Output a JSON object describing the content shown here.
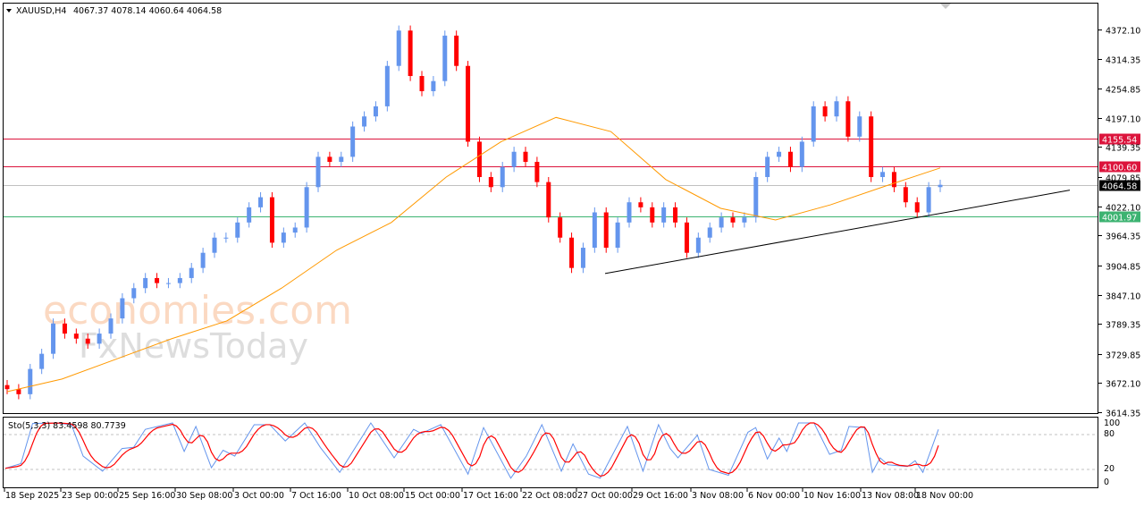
{
  "header": {
    "symbol": "XAUUSD,H4",
    "ohlc": "4067.37 4078.14 4060.64 4064.58"
  },
  "watermark": {
    "logo1": "economies.com",
    "logo2": "FxNewsToday"
  },
  "colors": {
    "bull": "#6495ED",
    "bear": "#FF0000",
    "ma": "#FF9900",
    "resistance": "#DC143C",
    "support": "#3CB371",
    "bid": "#C0C0C0",
    "stoch_main": "#6495ED",
    "stoch_signal": "#FF0000"
  },
  "chart_data": [
    {
      "type": "candlestick",
      "title": "XAUUSD,H4",
      "ylim": [
        3614.35,
        4372.1
      ],
      "closes": [
        3660,
        3650,
        3700,
        3730,
        3790,
        3770,
        3760,
        3750,
        3770,
        3800,
        3840,
        3860,
        3880,
        3870,
        3870,
        3880,
        3900,
        3930,
        3960,
        3960,
        3990,
        4020,
        4040,
        3950,
        3970,
        3980,
        4060,
        4120,
        4110,
        4120,
        4180,
        4200,
        4220,
        4300,
        4370,
        4280,
        4250,
        4270,
        4360,
        4300,
        4150,
        4080,
        4060,
        4100,
        4130,
        4110,
        4070,
        4000,
        3960,
        3900,
        3940,
        4010,
        3940,
        3990,
        4030,
        4020,
        3990,
        4020,
        3990,
        3930,
        3960,
        3980,
        4000,
        3990,
        4000,
        4080,
        4120,
        4130,
        4100,
        4150,
        4220,
        4200,
        4230,
        4160,
        4200,
        4080,
        4090,
        4060,
        4030,
        4010,
        4060,
        4064.58
      ],
      "moving_average": [
        3655,
        3680,
        3720,
        3760,
        3795,
        3860,
        3935,
        3990,
        4080,
        4150,
        4198,
        4170,
        4075,
        4018,
        3995,
        4025,
        4062,
        4098
      ],
      "price_labels": [
        "4372.10",
        "4314.35",
        "4254.85",
        "4197.10",
        "4139.35",
        "4079.85",
        "4022.10",
        "3964.35",
        "3904.85",
        "3847.10",
        "3789.35",
        "3729.85",
        "3672.10",
        "3614.35"
      ],
      "x_labels": [
        "18 Sep 2025",
        "23 Sep 00:00",
        "25 Sep 16:00",
        "30 Sep 08:00",
        "3 Oct 00:00",
        "7 Oct 16:00",
        "10 Oct 08:00",
        "15 Oct 00:00",
        "17 Oct 16:00",
        "22 Oct 08:00",
        "27 Oct 00:00",
        "29 Oct 16:00",
        "3 Nov 08:00",
        "6 Nov 00:00",
        "10 Nov 16:00",
        "13 Nov 08:00",
        "18 Nov 00:00"
      ],
      "levels": [
        {
          "label": "4155.54",
          "value": 4155.54,
          "kind": "resistance"
        },
        {
          "label": "4100.60",
          "value": 4100.6,
          "kind": "resistance"
        },
        {
          "label": "4064.58",
          "value": 4064.58,
          "kind": "bid"
        },
        {
          "label": "4001.97",
          "value": 4001.97,
          "kind": "support"
        }
      ],
      "trendline": {
        "from": 3889,
        "to": 4054
      }
    },
    {
      "type": "line",
      "title": "Sto(5,3,3) 83.4598 80.7739",
      "ylim": [
        0,
        100
      ],
      "levels": [
        "100",
        "80",
        "20",
        "0"
      ],
      "k": [
        [
          0,
          22
        ],
        [
          4,
          30
        ],
        [
          7,
          99
        ],
        [
          13,
          100
        ],
        [
          17,
          97
        ],
        [
          20,
          43
        ],
        [
          25,
          17
        ],
        [
          30,
          56
        ],
        [
          33,
          58
        ],
        [
          36,
          89
        ],
        [
          43,
          100
        ],
        [
          46,
          51
        ],
        [
          49,
          94
        ],
        [
          53,
          23
        ],
        [
          56,
          53
        ],
        [
          59,
          43
        ],
        [
          64,
          97
        ],
        [
          68,
          97
        ],
        [
          72,
          69
        ],
        [
          77,
          100
        ],
        [
          81,
          58
        ],
        [
          86,
          15
        ],
        [
          94,
          100
        ],
        [
          100,
          40
        ],
        [
          105,
          89
        ],
        [
          107,
          82
        ],
        [
          112,
          97
        ],
        [
          119,
          12
        ],
        [
          123,
          92
        ],
        [
          130,
          5
        ],
        [
          134,
          43
        ],
        [
          138,
          97
        ],
        [
          143,
          17
        ],
        [
          146,
          64
        ],
        [
          150,
          12
        ],
        [
          153,
          5
        ],
        [
          160,
          94
        ],
        [
          164,
          17
        ],
        [
          168,
          97
        ],
        [
          171,
          56
        ],
        [
          173,
          40
        ],
        [
          178,
          79
        ],
        [
          181,
          20
        ],
        [
          186,
          10
        ],
        [
          191,
          84
        ],
        [
          193,
          92
        ],
        [
          196,
          38
        ],
        [
          199,
          74
        ],
        [
          201,
          51
        ],
        [
          204,
          100
        ],
        [
          208,
          100
        ],
        [
          212,
          46
        ],
        [
          215,
          53
        ],
        [
          217,
          94
        ],
        [
          221,
          92
        ],
        [
          223,
          15
        ],
        [
          225,
          40
        ],
        [
          227,
          28
        ],
        [
          232,
          25
        ],
        [
          234,
          35
        ],
        [
          236,
          15
        ],
        [
          240,
          89
        ]
      ]
    }
  ]
}
